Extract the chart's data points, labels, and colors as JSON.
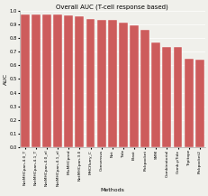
{
  "title": "Overall AUC (T-cell response based)",
  "xlabel": "Methods",
  "ylabel": "AUC",
  "bar_color": "#cd5c5c",
  "categories": [
    "NetMHCpan-4.0_T",
    "NetMHCpan-4.1_T",
    "NetMHCpan-4.0_el",
    "NetMHCpan-4.1_el",
    "MixMHCpred",
    "NetMHCpan-3.0",
    "MHCflurry_C",
    "Consensus",
    "Net",
    "Tide",
    "Blast",
    "Pickpocket",
    "SMM",
    "Combinatorial",
    "Comb-pTide",
    "Tepitope",
    "Pickpocket2"
  ],
  "values": [
    0.975,
    0.972,
    0.971,
    0.97,
    0.968,
    0.963,
    0.937,
    0.935,
    0.934,
    0.916,
    0.891,
    0.858,
    0.771,
    0.735,
    0.735,
    0.648,
    0.643
  ],
  "ylim": [
    0.0,
    1.0
  ],
  "yticks": [
    0.0,
    0.1,
    0.2,
    0.3,
    0.4,
    0.5,
    0.6,
    0.7,
    0.8,
    0.9,
    1.0
  ],
  "title_fontsize": 5,
  "label_fontsize": 4.5,
  "tick_fontsize": 3.8,
  "xtick_fontsize": 3.2,
  "background_color": "#f0f0eb"
}
